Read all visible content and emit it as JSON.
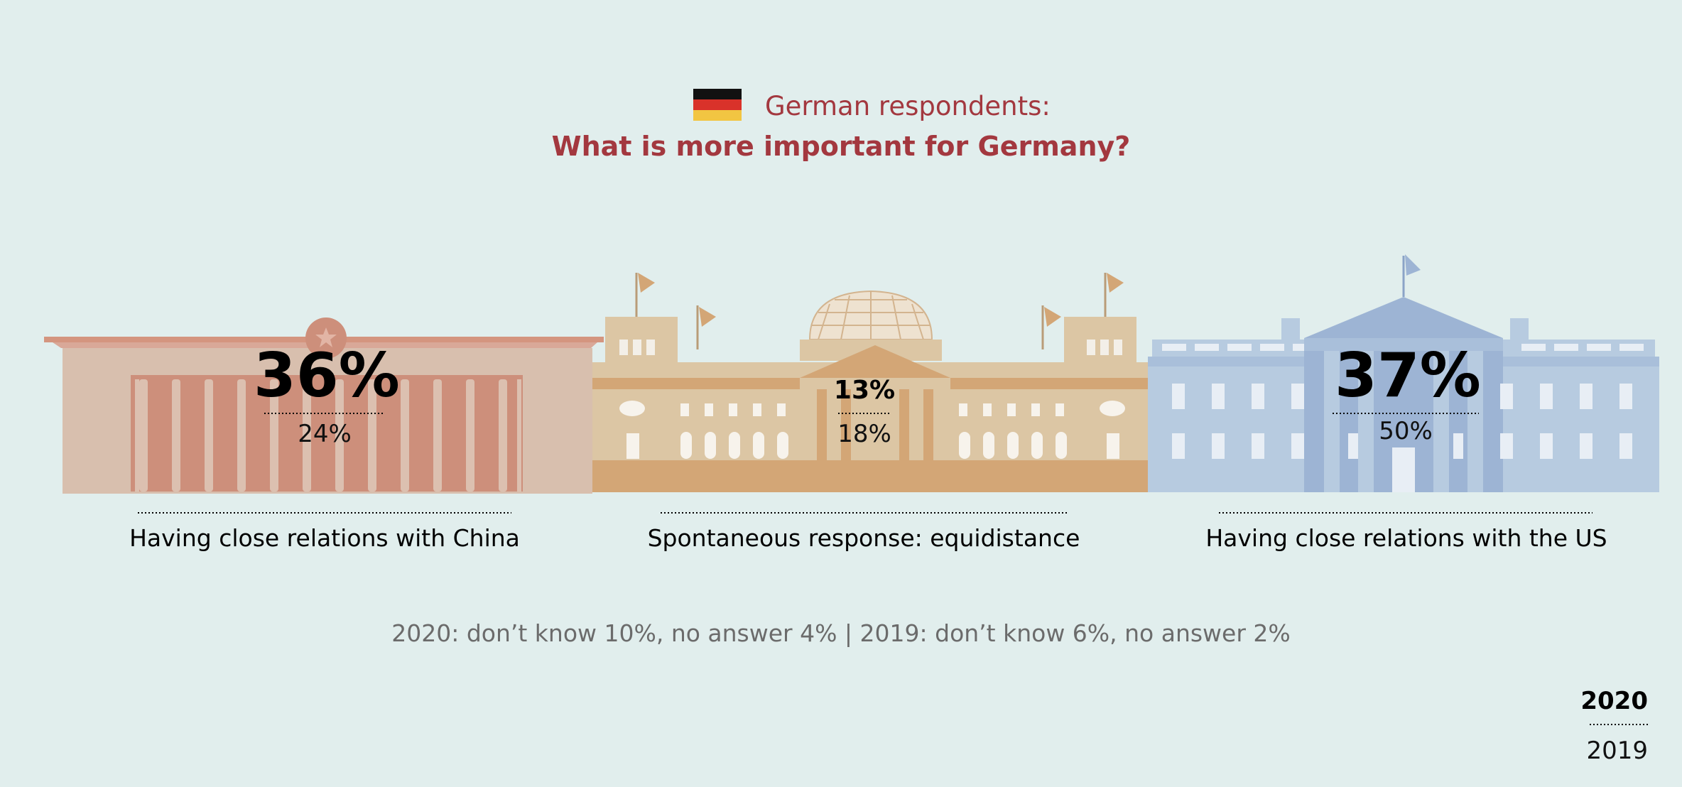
{
  "header": {
    "flag_icon": "germany-flag-icon",
    "subtitle": "German respondents:",
    "title": "What is more important for Germany?"
  },
  "chart_data": {
    "type": "table",
    "categories": [
      "Having close relations with China",
      "Spontaneous response: equidistance",
      "Having close relations with the US"
    ],
    "series": [
      {
        "name": "2020",
        "values": [
          36,
          13,
          37
        ]
      },
      {
        "name": "2019",
        "values": [
          24,
          18,
          50
        ]
      }
    ],
    "display_2020": [
      "36%",
      "13%",
      "37%"
    ],
    "display_2019": [
      "24%",
      "18%",
      "50%"
    ],
    "footnote": "2020: don’t know 10%, no answer 4% | 2019: don’t know 6%, no answer 2%",
    "legend": [
      "2020",
      "2019"
    ],
    "legend_placement": "bottom-right"
  },
  "illustrations": {
    "china": "great-hall-of-the-people-icon",
    "germany": "reichstag-building-icon",
    "us": "white-house-icon"
  },
  "colors": {
    "background": "#e1eeed",
    "title": "#a3383f",
    "china_building": "#d8bfae",
    "china_columns": "#cd8f7b",
    "germany_building": "#dcc6a4",
    "germany_accent": "#d3a676",
    "us_building": "#b7cbe0",
    "us_accent": "#9db4d4"
  }
}
